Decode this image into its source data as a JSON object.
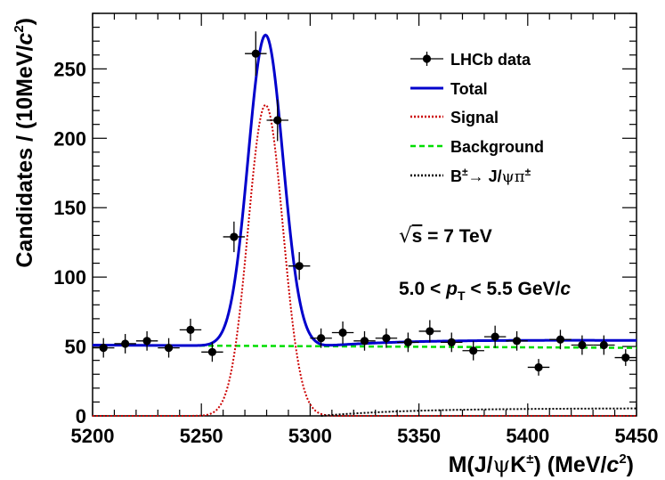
{
  "chart_data": {
    "type": "scatter",
    "xlabel_parts": [
      "M(J/",
      "ψ",
      "K",
      "±",
      ") (MeV/",
      "c",
      "2",
      ")"
    ],
    "ylabel_parts": [
      "Candidates / (10MeV/",
      "c",
      "2",
      ")"
    ],
    "xlim": [
      5200,
      5450
    ],
    "ylim": [
      0,
      290
    ],
    "xticks": [
      5200,
      5250,
      5300,
      5350,
      5400,
      5450
    ],
    "yticks": [
      0,
      50,
      100,
      150,
      200,
      250
    ],
    "grid": false,
    "legend_position": "top-right",
    "legend": [
      {
        "label": "LHCb data",
        "style": "points",
        "color": "#000000"
      },
      {
        "label": "Total",
        "style": "solid",
        "color": "#0000cc"
      },
      {
        "label": "Signal",
        "style": "dotted",
        "color": "#cc0000"
      },
      {
        "label": "Background",
        "style": "dashed",
        "color": "#00dd00"
      },
      {
        "label_parts": [
          "B",
          "±",
          "→ J/",
          "ψπ",
          "±"
        ],
        "style": "dotted",
        "color": "#000000"
      }
    ],
    "annotations": {
      "energy_parts": [
        "√",
        "s",
        " = 7 TeV"
      ],
      "pt_parts": [
        "5.0 < ",
        "p",
        "T",
        " < 5.5 GeV/",
        "c"
      ]
    },
    "data_points": {
      "x": [
        5205,
        5215,
        5225,
        5235,
        5245,
        5255,
        5265,
        5275,
        5285,
        5295,
        5305,
        5315,
        5325,
        5335,
        5345,
        5355,
        5365,
        5375,
        5385,
        5395,
        5405,
        5415,
        5425,
        5435,
        5445
      ],
      "y": [
        49,
        52,
        54,
        49,
        62,
        46,
        129,
        261,
        213,
        108,
        56,
        60,
        54,
        56,
        53,
        61,
        53,
        47,
        57,
        54,
        35,
        55,
        51,
        51,
        42
      ],
      "yerr": [
        7,
        7,
        7,
        7,
        8,
        7,
        11,
        16,
        15,
        10,
        7,
        8,
        7,
        7,
        7,
        8,
        7,
        7,
        8,
        7,
        6,
        7,
        7,
        7,
        6
      ],
      "xerr": 5
    },
    "model": {
      "background_level": 51,
      "background_slope_per_mev": -0.008,
      "signal_peak": 224,
      "signal_mean": 5279.5,
      "signal_sigma": 8,
      "misid_start": 5305,
      "misid_max": 5.5
    },
    "colors": {
      "total": "#0000cc",
      "signal": "#cc0000",
      "background": "#00dd00",
      "misid": "#000000",
      "data": "#000000"
    }
  }
}
